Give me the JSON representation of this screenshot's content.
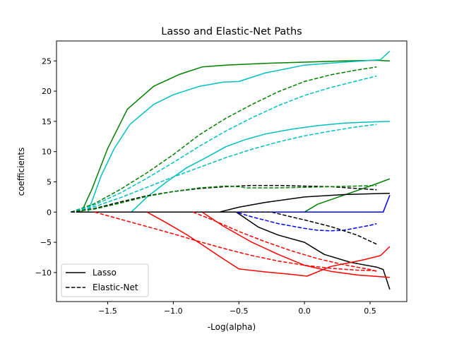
{
  "chart_data": {
    "type": "line",
    "title": "Lasso and Elastic-Net Paths",
    "xlabel": "-Log(alpha)",
    "ylabel": "coefficients",
    "xlim": [
      -1.89,
      0.78
    ],
    "ylim": [
      -14.8,
      28.3
    ],
    "xticks": [
      -1.5,
      -1.0,
      -0.5,
      0.0,
      0.5
    ],
    "xtick_labels": [
      "−1.5",
      "−1.0",
      "−0.5",
      "0.0",
      "0.5"
    ],
    "yticks": [
      -10,
      -5,
      0,
      5,
      10,
      15,
      20,
      25
    ],
    "ytick_labels": [
      "−10",
      "−5",
      "0",
      "5",
      "10",
      "15",
      "20",
      "25"
    ],
    "grid": false,
    "legend": {
      "placement": "lower-left",
      "entries": [
        {
          "label": "Lasso",
          "style": "solid"
        },
        {
          "label": "Elastic-Net",
          "style": "dashed"
        }
      ]
    },
    "series": [
      {
        "group": "Lasso",
        "color": "#008000",
        "style": "solid",
        "points": [
          [
            -1.7,
            0
          ],
          [
            -1.62,
            3.8
          ],
          [
            -1.5,
            10.5
          ],
          [
            -1.35,
            17
          ],
          [
            -1.15,
            20.8
          ],
          [
            -0.95,
            22.8
          ],
          [
            -0.78,
            24
          ],
          [
            -0.6,
            24.3
          ],
          [
            -0.5,
            24.4
          ],
          [
            -0.3,
            24.6
          ],
          [
            0.0,
            24.8
          ],
          [
            0.3,
            25
          ],
          [
            0.55,
            25.1
          ],
          [
            0.65,
            25
          ]
        ]
      },
      {
        "group": "Lasso",
        "color": "#00BFBF",
        "style": "solid",
        "points": [
          [
            -1.65,
            0
          ],
          [
            -1.55,
            6
          ],
          [
            -1.45,
            10.5
          ],
          [
            -1.33,
            14.5
          ],
          [
            -1.15,
            17.8
          ],
          [
            -1.0,
            19.4
          ],
          [
            -0.8,
            20.8
          ],
          [
            -0.62,
            21.5
          ],
          [
            -0.5,
            21.6
          ],
          [
            -0.3,
            23
          ],
          [
            0.0,
            24.3
          ],
          [
            0.3,
            24.8
          ],
          [
            0.58,
            25.2
          ],
          [
            0.65,
            26.6
          ]
        ]
      },
      {
        "group": "Lasso",
        "color": "#00BFBF",
        "style": "solid",
        "points": [
          [
            -1.32,
            0
          ],
          [
            -1.2,
            2.5
          ],
          [
            -1.05,
            5
          ],
          [
            -0.9,
            7.3
          ],
          [
            -0.75,
            9
          ],
          [
            -0.6,
            10.8
          ],
          [
            -0.45,
            12
          ],
          [
            -0.3,
            12.9
          ],
          [
            -0.1,
            13.7
          ],
          [
            0.1,
            14.3
          ],
          [
            0.3,
            14.7
          ],
          [
            0.5,
            14.9
          ],
          [
            0.65,
            15
          ]
        ]
      },
      {
        "group": "Lasso",
        "color": "#008000",
        "style": "solid",
        "points": [
          [
            -1.74,
            0
          ],
          [
            0.0,
            0
          ],
          [
            0.1,
            1.3
          ],
          [
            0.3,
            2.8
          ],
          [
            0.5,
            4.3
          ],
          [
            0.65,
            5.5
          ]
        ]
      },
      {
        "group": "Lasso",
        "color": "#000000",
        "style": "solid",
        "points": [
          [
            -1.74,
            0
          ],
          [
            -0.65,
            0
          ],
          [
            -0.5,
            0.8
          ],
          [
            -0.3,
            1.6
          ],
          [
            0.0,
            2.5
          ],
          [
            0.3,
            2.9
          ],
          [
            0.63,
            3.1
          ],
          [
            0.65,
            3.1
          ]
        ]
      },
      {
        "group": "Lasso",
        "color": "#0000FF",
        "style": "solid",
        "points": [
          [
            -1.74,
            0
          ],
          [
            0.6,
            0
          ],
          [
            0.65,
            2.8
          ]
        ]
      },
      {
        "group": "Lasso",
        "color": "#000000",
        "style": "solid",
        "points": [
          [
            -1.74,
            0
          ],
          [
            -0.52,
            0
          ],
          [
            -0.35,
            -2.5
          ],
          [
            -0.2,
            -3.8
          ],
          [
            0.0,
            -5
          ],
          [
            0.15,
            -7
          ],
          [
            0.35,
            -8.3
          ],
          [
            0.55,
            -9.1
          ],
          [
            0.6,
            -9.5
          ],
          [
            0.65,
            -12.8
          ]
        ]
      },
      {
        "group": "Lasso",
        "color": "#FF0000",
        "style": "solid",
        "points": [
          [
            -1.2,
            0
          ],
          [
            -1.05,
            -1.8
          ],
          [
            -0.9,
            -3.7
          ],
          [
            -0.78,
            -5.4
          ],
          [
            -0.65,
            -7.3
          ],
          [
            -0.5,
            -9.4
          ],
          [
            -0.3,
            -9.9
          ],
          [
            -0.1,
            -10.3
          ],
          [
            0.02,
            -10.6
          ],
          [
            0.2,
            -9
          ],
          [
            0.45,
            -7.9
          ],
          [
            0.58,
            -7.2
          ],
          [
            0.65,
            -5.7
          ]
        ]
      },
      {
        "group": "Lasso",
        "color": "#FF0000",
        "style": "solid",
        "points": [
          [
            -0.78,
            0
          ],
          [
            -0.62,
            -2.3
          ],
          [
            -0.4,
            -5
          ],
          [
            -0.2,
            -7
          ],
          [
            0.0,
            -8.8
          ],
          [
            0.2,
            -9.8
          ],
          [
            0.4,
            -10.4
          ],
          [
            0.65,
            -10.8
          ]
        ]
      },
      {
        "group": "Elastic-Net",
        "color": "#008000",
        "style": "dashed",
        "points": [
          [
            -1.78,
            0
          ],
          [
            -1.6,
            1.4
          ],
          [
            -1.4,
            3.8
          ],
          [
            -1.2,
            6.5
          ],
          [
            -1.0,
            9.5
          ],
          [
            -0.8,
            12.8
          ],
          [
            -0.6,
            15.5
          ],
          [
            -0.4,
            17.8
          ],
          [
            -0.2,
            19.9
          ],
          [
            0.0,
            21.6
          ],
          [
            0.2,
            22.7
          ],
          [
            0.4,
            23.5
          ],
          [
            0.55,
            24
          ]
        ]
      },
      {
        "group": "Elastic-Net",
        "color": "#00BFBF",
        "style": "dashed",
        "points": [
          [
            -1.78,
            0
          ],
          [
            -1.6,
            1.2
          ],
          [
            -1.4,
            3.2
          ],
          [
            -1.2,
            5.6
          ],
          [
            -1.0,
            8.2
          ],
          [
            -0.8,
            10.9
          ],
          [
            -0.6,
            13.4
          ],
          [
            -0.4,
            15.6
          ],
          [
            -0.2,
            17.6
          ],
          [
            0.0,
            19.3
          ],
          [
            0.2,
            20.6
          ],
          [
            0.4,
            21.7
          ],
          [
            0.55,
            22.5
          ]
        ]
      },
      {
        "group": "Elastic-Net",
        "color": "#00BFBF",
        "style": "dashed",
        "points": [
          [
            -1.78,
            0
          ],
          [
            -1.6,
            0.9
          ],
          [
            -1.4,
            2.4
          ],
          [
            -1.2,
            4.1
          ],
          [
            -1.0,
            5.8
          ],
          [
            -0.8,
            7.4
          ],
          [
            -0.6,
            9
          ],
          [
            -0.4,
            10.4
          ],
          [
            -0.2,
            11.6
          ],
          [
            0.0,
            12.6
          ],
          [
            0.2,
            13.4
          ],
          [
            0.4,
            14.1
          ],
          [
            0.55,
            14.5
          ]
        ]
      },
      {
        "group": "Elastic-Net",
        "color": "#000000",
        "style": "dashed",
        "points": [
          [
            -1.78,
            0
          ],
          [
            -1.6,
            0.6
          ],
          [
            -1.4,
            1.7
          ],
          [
            -1.2,
            2.7
          ],
          [
            -1.0,
            3.4
          ],
          [
            -0.8,
            3.9
          ],
          [
            -0.6,
            4.2
          ],
          [
            -0.4,
            4.4
          ],
          [
            -0.2,
            4.4
          ],
          [
            0.0,
            4.3
          ],
          [
            0.2,
            4.2
          ],
          [
            0.4,
            3.9
          ],
          [
            0.55,
            3.7
          ]
        ]
      },
      {
        "group": "Elastic-Net",
        "color": "#008000",
        "style": "dashed",
        "points": [
          [
            -1.78,
            0
          ],
          [
            -1.6,
            0.5
          ],
          [
            -1.4,
            1.5
          ],
          [
            -1.2,
            2.6
          ],
          [
            -1.0,
            3.4
          ],
          [
            -0.8,
            4
          ],
          [
            -0.6,
            4.3
          ],
          [
            -0.5,
            4.2
          ],
          [
            -0.45,
            4
          ],
          [
            -0.2,
            4
          ],
          [
            0.0,
            4.1
          ],
          [
            0.2,
            4.2
          ],
          [
            0.4,
            4.3
          ],
          [
            0.55,
            4.4
          ]
        ]
      },
      {
        "group": "Elastic-Net",
        "color": "#0000FF",
        "style": "dashed",
        "points": [
          [
            -1.78,
            0
          ],
          [
            -0.52,
            0
          ],
          [
            -0.4,
            -0.8
          ],
          [
            -0.2,
            -1.9
          ],
          [
            0.0,
            -2.7
          ],
          [
            0.1,
            -3
          ],
          [
            0.2,
            -3.1
          ],
          [
            0.3,
            -3
          ],
          [
            0.4,
            -2.6
          ],
          [
            0.5,
            -2.2
          ],
          [
            0.55,
            -1.9
          ]
        ]
      },
      {
        "group": "Elastic-Net",
        "color": "#000000",
        "style": "dashed",
        "points": [
          [
            -1.78,
            0
          ],
          [
            -0.25,
            0
          ],
          [
            -0.1,
            -0.8
          ],
          [
            0.0,
            -1.3
          ],
          [
            0.2,
            -2.4
          ],
          [
            0.4,
            -3.8
          ],
          [
            0.55,
            -5.3
          ]
        ]
      },
      {
        "group": "Elastic-Net",
        "color": "#FF0000",
        "style": "dashed",
        "points": [
          [
            -1.6,
            0
          ],
          [
            -1.4,
            -1.2
          ],
          [
            -1.2,
            -2.4
          ],
          [
            -1.0,
            -3.6
          ],
          [
            -0.8,
            -4.9
          ],
          [
            -0.6,
            -6.1
          ],
          [
            -0.4,
            -7.2
          ],
          [
            -0.2,
            -8.1
          ],
          [
            0.0,
            -8.8
          ],
          [
            0.2,
            -9.3
          ],
          [
            0.4,
            -9.6
          ],
          [
            0.55,
            -9.7
          ]
        ]
      },
      {
        "group": "Elastic-Net",
        "color": "#FF0000",
        "style": "dashed",
        "points": [
          [
            -0.85,
            0
          ],
          [
            -0.7,
            -1.3
          ],
          [
            -0.5,
            -3.2
          ],
          [
            -0.3,
            -4.9
          ],
          [
            -0.1,
            -6.4
          ],
          [
            0.1,
            -7.7
          ],
          [
            0.3,
            -8.7
          ],
          [
            0.5,
            -9.5
          ],
          [
            0.55,
            -9.8
          ]
        ]
      }
    ]
  }
}
